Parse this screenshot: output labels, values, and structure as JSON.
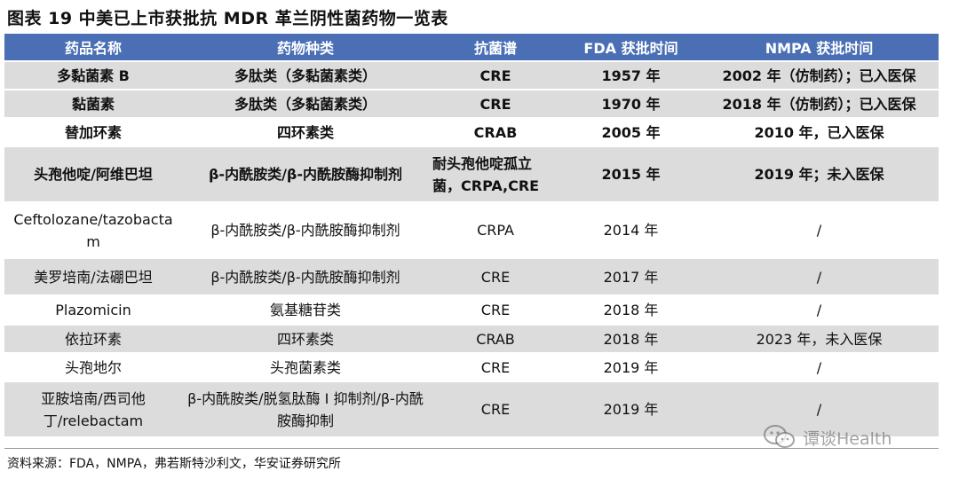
{
  "title": "图表 19 中美已上市获批抗 MDR 革兰阴性菌药物一览表",
  "columns": [
    "药品名称",
    "药物种类",
    "抗菌谱",
    "FDA 获批时间",
    "NMPA 获批时间"
  ],
  "rows": [
    {
      "name": "多黏菌素 B",
      "category": "多肽类（多黏菌素类）",
      "spectrum": "CRE",
      "fda": "1957 年",
      "nmpa": "2002 年（仿制药）；已入医保"
    },
    {
      "name": "黏菌素",
      "category": "多肽类（多黏菌素类）",
      "spectrum": "CRE",
      "fda": "1970 年",
      "nmpa": "2018 年（仿制药）；已入医保"
    },
    {
      "name": "替加环素",
      "category": "四环素类",
      "spectrum": "CRAB",
      "fda": "2005 年",
      "nmpa": "2010 年，已入医保"
    },
    {
      "name": "头孢他啶/阿维巴坦",
      "category": "β-内酰胺类/β-内酰胺酶抑制剂",
      "spectrum": "耐头孢他啶孤立菌，CRPA,CRE",
      "fda": "2015 年",
      "nmpa": "2019 年；未入医保"
    },
    {
      "name": "Ceftolozane/tazobactam",
      "category": "β-内酰胺类/β-内酰胺酶抑制剂",
      "spectrum": "CRPA",
      "fda": "2014 年",
      "nmpa": "/"
    },
    {
      "name": "美罗培南/法硼巴坦",
      "category": "β-内酰胺类/β-内酰胺酶抑制剂",
      "spectrum": "CRE",
      "fda": "2017 年",
      "nmpa": "/"
    },
    {
      "name": "Plazomicin",
      "category": "氨基糖苷类",
      "spectrum": "CRE",
      "fda": "2018 年",
      "nmpa": "/"
    },
    {
      "name": "依拉环素",
      "category": "四环素类",
      "spectrum": "CRAB",
      "fda": "2018 年",
      "nmpa": "2023 年，未入医保"
    },
    {
      "name": "头孢地尔",
      "category": "头孢菌素类",
      "spectrum": "CRE",
      "fda": "2019 年",
      "nmpa": "/"
    },
    {
      "name": "亚胺培南/西司他丁/relebactam",
      "category": "β-内酰胺类/脱氢肽酶 I 抑制剂/β-内酰胺酶抑制",
      "spectrum": "CRE",
      "fda": "2019 年",
      "nmpa": "/"
    }
  ],
  "source": "资料来源：FDA，NMPA，弗若斯特沙利文，华安证券研究所",
  "watermark": "谭谈Health",
  "watermark_icon": "wechat-icon",
  "colors": {
    "header_bg": "#4a6fb5",
    "shade_bg": "#dcdcdc"
  }
}
